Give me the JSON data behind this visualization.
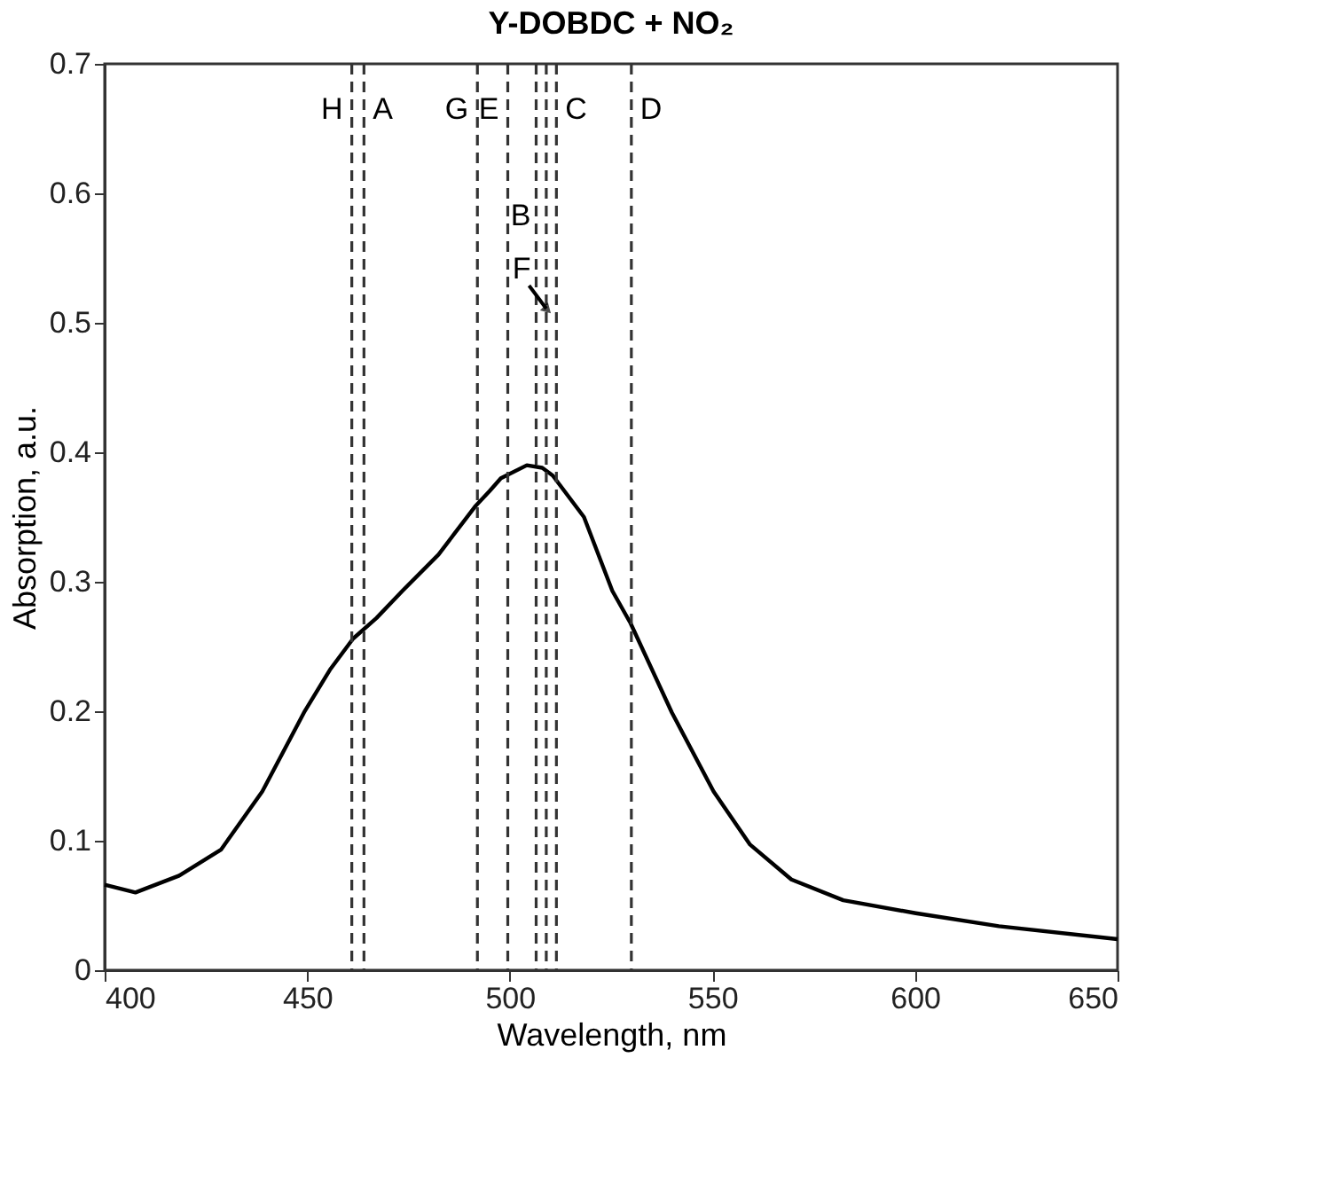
{
  "chart_data": {
    "type": "line",
    "title": "Y-DOBDC + NO₂",
    "xlabel": "Wavelength, nm",
    "ylabel": "Absorption, a.u.",
    "x": [
      400,
      407.6,
      418.4,
      428.7,
      438.9,
      449.2,
      455.6,
      461.3,
      467.1,
      473.5,
      482.4,
      491.4,
      495,
      497.8,
      504.2,
      508,
      510.6,
      518.3,
      525.3,
      529.8,
      540,
      550.3,
      559.3,
      569.5,
      582.3,
      600.2,
      620.7,
      650
    ],
    "series": [
      {
        "color": "#000000",
        "values": [
          0.066,
          0.06,
          0.073,
          0.093,
          0.138,
          0.199,
          0.232,
          0.256,
          0.272,
          0.293,
          0.321,
          0.358,
          0.37,
          0.38,
          0.39,
          0.388,
          0.382,
          0.35,
          0.293,
          0.268,
          0.199,
          0.138,
          0.097,
          0.07,
          0.054,
          0.044,
          0.034,
          0.024
        ]
      }
    ],
    "xlim": [
      400,
      650
    ],
    "xticks": [
      400,
      450,
      500,
      550,
      600,
      650
    ],
    "ylim": [
      0,
      0.7
    ],
    "yticks": [
      0,
      0.1,
      0.2,
      0.3,
      0.4,
      0.5,
      0.6,
      0.7
    ],
    "grid": false,
    "marker": "none",
    "line_style": "solid",
    "ref_lines": [
      {
        "axis": "x",
        "value": 461,
        "label": "H",
        "color": "#333333",
        "line_style": "dashed"
      },
      {
        "axis": "x",
        "value": 464,
        "label": "A",
        "color": "#333333",
        "line_style": "dashed"
      },
      {
        "axis": "x",
        "value": 492,
        "label": "G",
        "color": "#333333",
        "line_style": "dashed"
      },
      {
        "axis": "x",
        "value": 499.5,
        "label": "E",
        "color": "#333333",
        "line_style": "dashed"
      },
      {
        "axis": "x",
        "value": 506.5,
        "label": "B",
        "color": "#333333",
        "line_style": "dashed"
      },
      {
        "axis": "x",
        "value": 509,
        "label": "F",
        "color": "#333333",
        "line_style": "dashed"
      },
      {
        "axis": "x",
        "value": 511.5,
        "label": "C",
        "color": "#333333",
        "line_style": "dashed"
      },
      {
        "axis": "x",
        "value": 530,
        "label": "D",
        "color": "#333333",
        "line_style": "dashed"
      }
    ]
  }
}
